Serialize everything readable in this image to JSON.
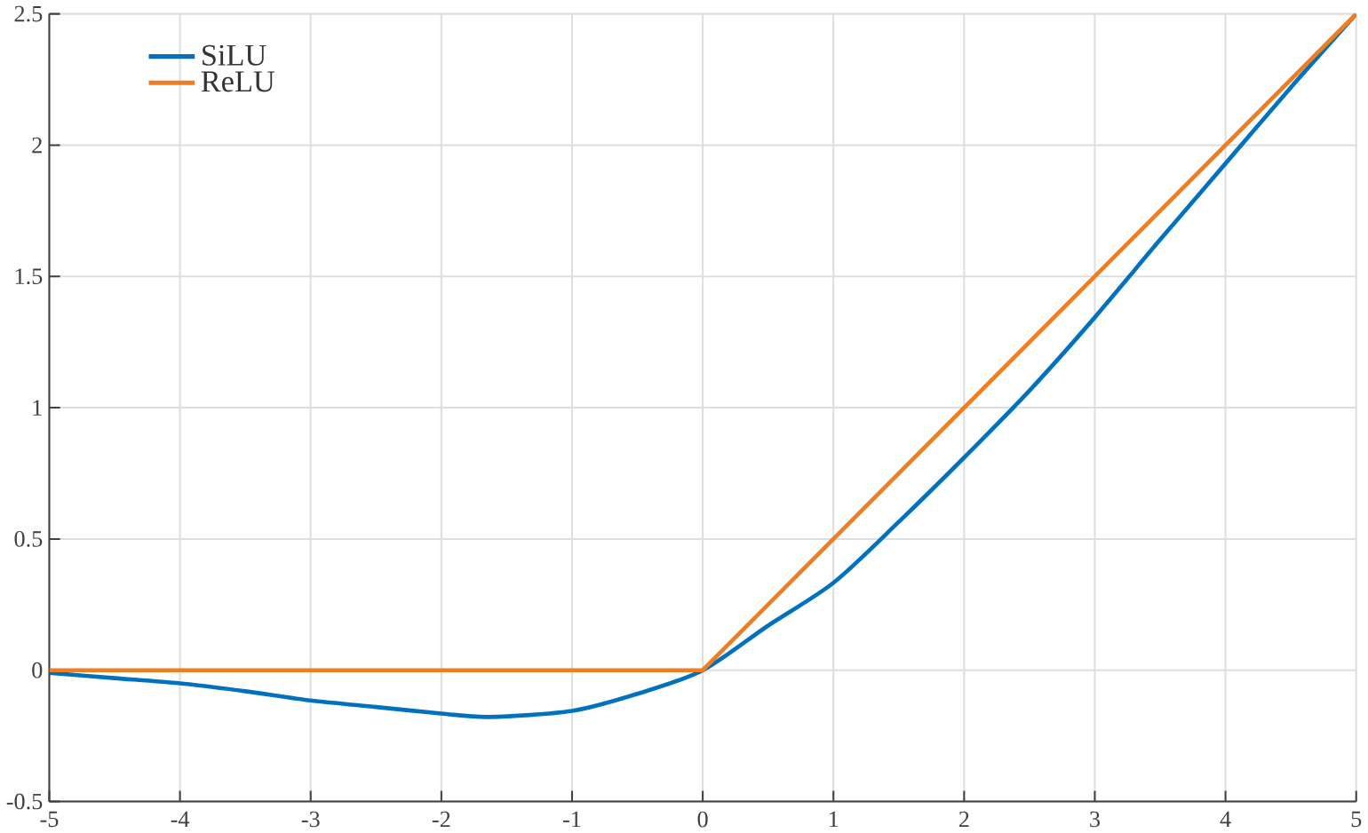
{
  "chart_data": {
    "type": "line",
    "x": [
      -5,
      -4.5,
      -4,
      -3.5,
      -3,
      -2.5,
      -2,
      -1.63,
      -1,
      -0.5,
      0,
      0.5,
      1,
      1.5,
      2,
      2.5,
      3,
      3.5,
      4,
      4.5,
      5
    ],
    "series": [
      {
        "name": "SiLU",
        "color": "#0072bd",
        "values": [
          -0.01,
          -0.03,
          -0.05,
          -0.08,
          -0.115,
          -0.14,
          -0.165,
          -0.178,
          -0.155,
          -0.09,
          0,
          0.17,
          0.333,
          0.565,
          0.81,
          1.065,
          1.344,
          1.64,
          1.93,
          2.22,
          2.5
        ]
      },
      {
        "name": "ReLU",
        "color": "#ee7e22",
        "x": [
          -5,
          0,
          5
        ],
        "values": [
          0,
          0,
          2.5
        ]
      }
    ],
    "xlim": [
      -5,
      5
    ],
    "ylim": [
      -0.5,
      2.5
    ],
    "xticks": [
      -5,
      -4,
      -3,
      -2,
      -1,
      0,
      1,
      2,
      3,
      4,
      5
    ],
    "yticks": [
      -0.5,
      0,
      0.5,
      1,
      1.5,
      2,
      2.5
    ],
    "grid": true,
    "legend": "top left",
    "marker": "none",
    "line_style": "solid"
  }
}
